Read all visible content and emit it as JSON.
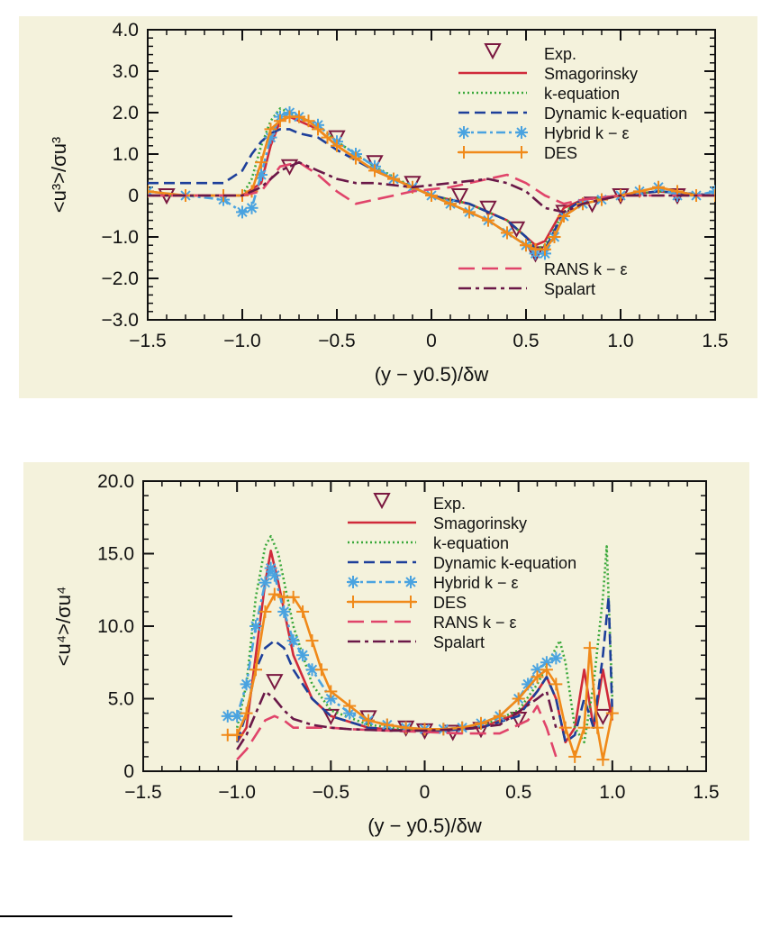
{
  "chart_data": [
    {
      "type": "line",
      "xlabel": "(y − y0.5)/δw",
      "ylabel": "<u³>/σu³",
      "xlim": [
        -1.5,
        1.5
      ],
      "ylim": [
        -3.0,
        4.0
      ],
      "xticks": [
        "-1.5",
        "-1.0",
        "-0.5",
        "0",
        "0.5",
        "1.0",
        "1.5"
      ],
      "yticks": [
        "4.0",
        "3.0",
        "2.0",
        "1.0",
        "0",
        "-1.0",
        "-2.0",
        "-3.0"
      ],
      "legend_top": [
        "Exp.",
        "Smagorinsky",
        "k-equation",
        "Dynamic k-equation",
        "Hybrid k − ε",
        "DES"
      ],
      "legend_bottom": [
        "RANS k − ε",
        "Spalart"
      ],
      "series": [
        {
          "name": "Exp.",
          "color": "#7a1840",
          "marker": "triangle-down",
          "x": [
            -1.4,
            -0.75,
            -0.5,
            -0.3,
            -0.1,
            0.15,
            0.3,
            0.45,
            0.55,
            0.7,
            0.85,
            1.0,
            1.3
          ],
          "y": [
            0.0,
            0.7,
            1.4,
            0.8,
            0.3,
            0.0,
            -0.3,
            -0.8,
            -1.4,
            -0.4,
            -0.2,
            0.0,
            0.0
          ]
        },
        {
          "name": "Smagorinsky",
          "color": "#d02a3a",
          "dash": "",
          "x": [
            -1.5,
            -1.0,
            -0.9,
            -0.85,
            -0.8,
            -0.75,
            -0.7,
            -0.6,
            -0.5,
            -0.3,
            -0.1,
            0.0,
            0.2,
            0.4,
            0.5,
            0.55,
            0.6,
            0.7,
            0.8,
            1.0,
            1.2,
            1.5
          ],
          "y": [
            0.0,
            0.0,
            0.3,
            1.2,
            1.8,
            1.9,
            1.8,
            1.6,
            1.2,
            0.6,
            0.2,
            0.0,
            -0.2,
            -0.6,
            -1.0,
            -1.2,
            -1.1,
            -0.3,
            -0.1,
            0.0,
            0.1,
            0.0
          ]
        },
        {
          "name": "k-equation",
          "color": "#3aa83a",
          "dash": "2,3",
          "x": [
            -1.5,
            -1.0,
            -0.95,
            -0.9,
            -0.85,
            -0.8,
            -0.75,
            -0.7,
            -0.6,
            -0.5,
            -0.3,
            -0.1,
            0.0,
            0.2,
            0.4,
            0.5,
            0.55,
            0.6,
            0.7,
            0.8,
            1.0,
            1.2,
            1.5
          ],
          "y": [
            0.0,
            0.0,
            0.4,
            1.2,
            1.8,
            2.1,
            2.0,
            1.9,
            1.7,
            1.3,
            0.7,
            0.2,
            0.0,
            -0.2,
            -0.6,
            -1.0,
            -1.3,
            -1.2,
            -0.4,
            -0.1,
            0.0,
            0.1,
            0.0
          ]
        },
        {
          "name": "Dynamic k-equation",
          "color": "#1d3f9a",
          "dash": "12,6",
          "x": [
            -1.5,
            -1.1,
            -1.0,
            -0.95,
            -0.9,
            -0.85,
            -0.8,
            -0.75,
            -0.7,
            -0.6,
            -0.5,
            -0.3,
            -0.1,
            0.0,
            0.2,
            0.4,
            0.5,
            0.55,
            0.6,
            0.7,
            0.8,
            1.0,
            1.2,
            1.5
          ],
          "y": [
            0.3,
            0.3,
            0.6,
            1.0,
            1.3,
            1.5,
            1.6,
            1.6,
            1.5,
            1.4,
            1.1,
            0.6,
            0.2,
            0.0,
            -0.2,
            -0.6,
            -1.0,
            -1.3,
            -1.3,
            -0.4,
            -0.1,
            0.0,
            0.1,
            0.0
          ]
        },
        {
          "name": "Hybrid k − ε",
          "color": "#4aa3e0",
          "dash": "10,4,3,4",
          "marker": "asterisk",
          "x": [
            -1.5,
            -1.3,
            -1.1,
            -1.0,
            -0.95,
            -0.9,
            -0.85,
            -0.8,
            -0.75,
            -0.7,
            -0.6,
            -0.5,
            -0.4,
            -0.3,
            -0.2,
            -0.1,
            0.0,
            0.1,
            0.2,
            0.3,
            0.4,
            0.5,
            0.55,
            0.6,
            0.65,
            0.7,
            0.8,
            0.9,
            1.0,
            1.1,
            1.2,
            1.3,
            1.4,
            1.5
          ],
          "y": [
            0.1,
            0.0,
            -0.1,
            -0.4,
            -0.3,
            0.5,
            1.4,
            1.9,
            2.0,
            1.9,
            1.7,
            1.3,
            1.0,
            0.7,
            0.4,
            0.2,
            0.0,
            -0.2,
            -0.4,
            -0.6,
            -0.9,
            -1.2,
            -1.4,
            -1.4,
            -1.0,
            -0.5,
            -0.2,
            -0.1,
            0.0,
            0.1,
            0.2,
            0.0,
            0.0,
            0.1
          ]
        },
        {
          "name": "DES",
          "color": "#f08a1a",
          "dash": "",
          "marker": "plus",
          "x": [
            -1.5,
            -1.3,
            -1.1,
            -1.0,
            -0.95,
            -0.9,
            -0.85,
            -0.8,
            -0.75,
            -0.7,
            -0.65,
            -0.6,
            -0.55,
            -0.5,
            -0.4,
            -0.3,
            -0.2,
            -0.1,
            0.0,
            0.1,
            0.2,
            0.3,
            0.4,
            0.5,
            0.55,
            0.6,
            0.65,
            0.7,
            0.8,
            0.9,
            1.0,
            1.1,
            1.2,
            1.3,
            1.4,
            1.5
          ],
          "y": [
            0.1,
            0.0,
            0.0,
            0.0,
            0.1,
            0.8,
            1.6,
            1.8,
            1.9,
            1.9,
            1.8,
            1.6,
            1.4,
            1.2,
            0.9,
            0.6,
            0.4,
            0.2,
            0.0,
            -0.2,
            -0.4,
            -0.6,
            -0.9,
            -1.2,
            -1.3,
            -1.3,
            -1.0,
            -0.5,
            -0.2,
            -0.1,
            0.0,
            0.1,
            0.2,
            0.1,
            0.0,
            0.0
          ]
        },
        {
          "name": "RANS k − ε",
          "color": "#e0446a",
          "dash": "18,8",
          "x": [
            -1.5,
            -1.0,
            -0.9,
            -0.8,
            -0.7,
            -0.6,
            -0.5,
            -0.4,
            -0.3,
            -0.1,
            0.1,
            0.2,
            0.3,
            0.4,
            0.5,
            0.6,
            0.7,
            0.8,
            1.0,
            1.5
          ],
          "y": [
            0.0,
            0.0,
            0.1,
            0.7,
            0.8,
            0.5,
            0.1,
            -0.2,
            -0.1,
            0.1,
            0.2,
            0.3,
            0.4,
            0.5,
            0.3,
            0.0,
            -0.2,
            -0.1,
            0.0,
            0.0
          ]
        },
        {
          "name": "Spalart",
          "color": "#6a1848",
          "dash": "14,5,4,5",
          "x": [
            -1.5,
            -1.0,
            -0.9,
            -0.8,
            -0.7,
            -0.6,
            -0.5,
            -0.4,
            -0.3,
            -0.1,
            0.1,
            0.3,
            0.4,
            0.5,
            0.6,
            0.7,
            0.8,
            1.0,
            1.5
          ],
          "y": [
            0.0,
            0.0,
            0.2,
            0.6,
            0.8,
            0.6,
            0.4,
            0.3,
            0.3,
            0.2,
            0.3,
            0.4,
            0.3,
            0.1,
            -0.3,
            -0.4,
            -0.2,
            0.0,
            0.0
          ]
        }
      ]
    },
    {
      "type": "line",
      "xlabel": "(y − y0.5)/δw",
      "ylabel": "<u⁴>/σu⁴",
      "xlim": [
        -1.5,
        1.5
      ],
      "ylim": [
        0,
        20.0
      ],
      "xticks": [
        "-1.5",
        "-1.0",
        "-0.5",
        "0",
        "0.5",
        "1.0",
        "1.5"
      ],
      "yticks": [
        "20.0",
        "15.0",
        "10.0",
        "5.0",
        "0"
      ],
      "legend_top": [
        "Exp.",
        "Smagorinsky",
        "k-equation",
        "Dynamic k-equation",
        "Hybrid k − ε",
        "DES",
        "RANS k − ε",
        "Spalart"
      ],
      "series": [
        {
          "name": "Exp.",
          "color": "#7a1840",
          "marker": "triangle-down",
          "x": [
            -0.8,
            -0.5,
            -0.3,
            -0.1,
            0.0,
            0.15,
            0.3,
            0.5,
            0.95
          ],
          "y": [
            6.2,
            3.8,
            3.7,
            3.0,
            2.8,
            2.7,
            2.9,
            3.6,
            3.8
          ]
        },
        {
          "name": "Smagorinsky",
          "color": "#d02a3a",
          "dash": "",
          "x": [
            -1.0,
            -0.95,
            -0.9,
            -0.85,
            -0.82,
            -0.78,
            -0.7,
            -0.6,
            -0.5,
            -0.3,
            -0.1,
            0.1,
            0.3,
            0.5,
            0.6,
            0.65,
            0.7,
            0.75,
            0.8,
            0.85,
            0.9,
            0.95,
            1.0
          ],
          "y": [
            2.0,
            3.0,
            8.0,
            13.0,
            15.2,
            13.0,
            8.0,
            5.0,
            3.8,
            3.0,
            2.8,
            2.8,
            3.0,
            4.0,
            5.5,
            6.5,
            5.0,
            2.0,
            3.0,
            7.0,
            3.0,
            7.0,
            3.5
          ]
        },
        {
          "name": "k-equation",
          "color": "#3aa83a",
          "dash": "2,3",
          "x": [
            -1.0,
            -0.95,
            -0.9,
            -0.85,
            -0.82,
            -0.78,
            -0.7,
            -0.6,
            -0.5,
            -0.3,
            -0.1,
            0.1,
            0.3,
            0.5,
            0.6,
            0.7,
            0.72,
            0.75,
            0.8,
            0.85,
            0.9,
            0.95,
            0.97,
            1.0
          ],
          "y": [
            3.0,
            6.0,
            12.0,
            15.5,
            16.2,
            15.0,
            10.0,
            6.0,
            4.2,
            3.2,
            2.9,
            2.9,
            3.1,
            4.2,
            6.0,
            8.5,
            9.0,
            7.5,
            3.0,
            2.0,
            6.0,
            12.0,
            15.5,
            5.0
          ]
        },
        {
          "name": "Dynamic k-equation",
          "color": "#1d3f9a",
          "dash": "12,6",
          "x": [
            -1.0,
            -0.95,
            -0.9,
            -0.85,
            -0.8,
            -0.75,
            -0.7,
            -0.6,
            -0.5,
            -0.3,
            -0.1,
            0.1,
            0.3,
            0.5,
            0.6,
            0.65,
            0.7,
            0.75,
            0.8,
            0.85,
            0.9,
            0.95,
            0.98,
            1.0
          ],
          "y": [
            2.0,
            4.0,
            7.0,
            8.5,
            9.0,
            8.5,
            7.0,
            5.0,
            3.8,
            3.0,
            2.8,
            2.8,
            3.0,
            3.8,
            5.5,
            6.5,
            5.0,
            2.0,
            2.5,
            5.0,
            3.0,
            8.0,
            12.0,
            4.0
          ]
        },
        {
          "name": "Hybrid k − ε",
          "color": "#4aa3e0",
          "dash": "10,4,3,4",
          "marker": "asterisk",
          "x": [
            -1.05,
            -1.0,
            -0.95,
            -0.9,
            -0.85,
            -0.82,
            -0.8,
            -0.75,
            -0.7,
            -0.65,
            -0.6,
            -0.5,
            -0.4,
            -0.3,
            -0.2,
            -0.1,
            0.0,
            0.1,
            0.2,
            0.3,
            0.4,
            0.5,
            0.55,
            0.6,
            0.65,
            0.7
          ],
          "y": [
            3.8,
            3.8,
            6.0,
            10.0,
            13.0,
            14.0,
            13.5,
            11.0,
            9.0,
            8.0,
            7.0,
            5.0,
            4.0,
            3.5,
            3.2,
            3.0,
            2.9,
            2.9,
            3.0,
            3.3,
            3.8,
            5.0,
            6.0,
            7.0,
            7.5,
            7.8
          ]
        },
        {
          "name": "DES",
          "color": "#f08a1a",
          "dash": "",
          "marker": "plus",
          "x": [
            -1.05,
            -1.0,
            -0.95,
            -0.9,
            -0.85,
            -0.8,
            -0.75,
            -0.7,
            -0.65,
            -0.6,
            -0.55,
            -0.5,
            -0.4,
            -0.3,
            -0.2,
            -0.1,
            0.0,
            0.1,
            0.2,
            0.3,
            0.4,
            0.5,
            0.6,
            0.65,
            0.7,
            0.75,
            0.8,
            0.85,
            0.88,
            0.92,
            0.95,
            1.0
          ],
          "y": [
            2.5,
            2.5,
            4.0,
            7.0,
            11.0,
            12.2,
            12.0,
            12.0,
            11.0,
            9.0,
            7.0,
            5.5,
            4.5,
            3.5,
            3.2,
            3.0,
            2.9,
            2.9,
            3.0,
            3.3,
            3.8,
            5.0,
            6.5,
            7.0,
            6.0,
            3.0,
            1.0,
            3.0,
            8.5,
            3.0,
            0.8,
            4.0
          ]
        },
        {
          "name": "RANS k − ε",
          "color": "#e0446a",
          "dash": "18,8",
          "x": [
            -1.0,
            -0.95,
            -0.9,
            -0.85,
            -0.8,
            -0.75,
            -0.7,
            -0.6,
            -0.5,
            -0.4,
            -0.2,
            0.0,
            0.2,
            0.4,
            0.55,
            0.6,
            0.65,
            0.7
          ],
          "y": [
            0.8,
            1.5,
            2.5,
            3.5,
            3.8,
            3.5,
            3.0,
            3.0,
            3.0,
            2.9,
            2.8,
            2.7,
            2.6,
            2.6,
            3.5,
            4.5,
            3.0,
            1.0
          ]
        },
        {
          "name": "Spalart",
          "color": "#6a1848",
          "dash": "14,5,4,5",
          "x": [
            -1.0,
            -0.95,
            -0.9,
            -0.85,
            -0.8,
            -0.75,
            -0.7,
            -0.6,
            -0.5,
            -0.4,
            -0.2,
            0.0,
            0.2,
            0.4,
            0.6,
            0.65,
            0.7
          ],
          "y": [
            1.5,
            2.5,
            4.0,
            5.5,
            5.0,
            4.2,
            3.6,
            3.2,
            3.0,
            2.9,
            2.8,
            2.8,
            2.9,
            3.2,
            5.0,
            5.5,
            3.0
          ]
        }
      ]
    }
  ]
}
